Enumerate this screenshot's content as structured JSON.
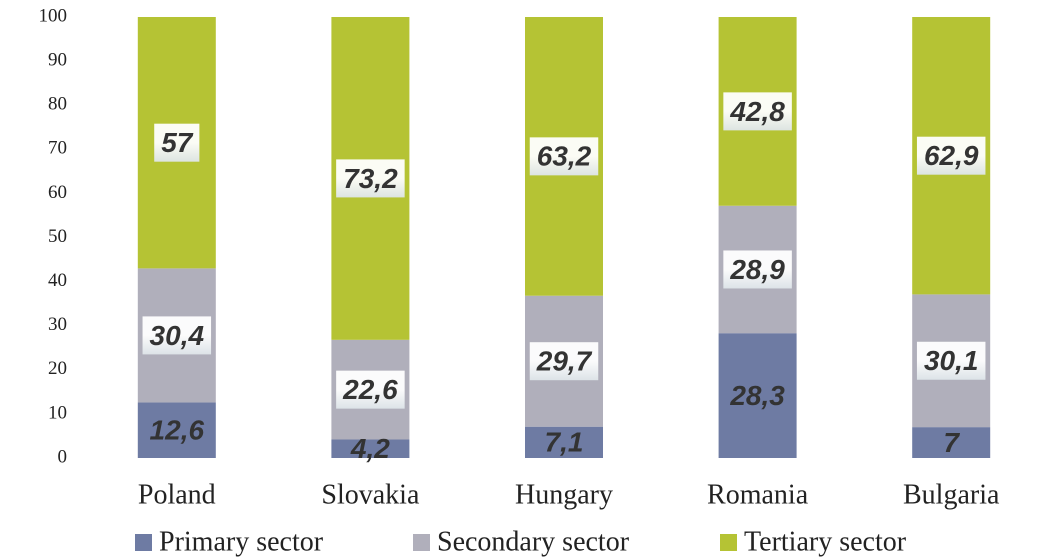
{
  "chart_data": {
    "type": "stacked_bar",
    "categories": [
      "Poland",
      "Slovakia",
      "Hungary",
      "Romania",
      "Bulgaria"
    ],
    "series": [
      {
        "name": "Primary sector",
        "color": "#6e7ba3",
        "values": [
          12.6,
          4.2,
          7.1,
          28.3,
          7
        ],
        "value_labels": [
          "12,6",
          "4,2",
          "7,1",
          "28,3",
          "7"
        ]
      },
      {
        "name": "Secondary sector",
        "color": "#b0afbb",
        "values": [
          30.4,
          22.6,
          29.7,
          28.9,
          30.1
        ],
        "value_labels": [
          "30,4",
          "22,6",
          "29,7",
          "28,9",
          "30,1"
        ]
      },
      {
        "name": "Tertiary sector",
        "color": "#b5c334",
        "values": [
          57,
          73.2,
          63.2,
          42.8,
          62.9
        ],
        "value_labels": [
          "57",
          "73,2",
          "63,2",
          "42,8",
          "62,9"
        ]
      }
    ],
    "ylim": [
      0,
      100
    ],
    "yticks": [
      0,
      10,
      20,
      30,
      40,
      50,
      60,
      70,
      80,
      90,
      100
    ],
    "grid": false,
    "legend": "bottom"
  }
}
